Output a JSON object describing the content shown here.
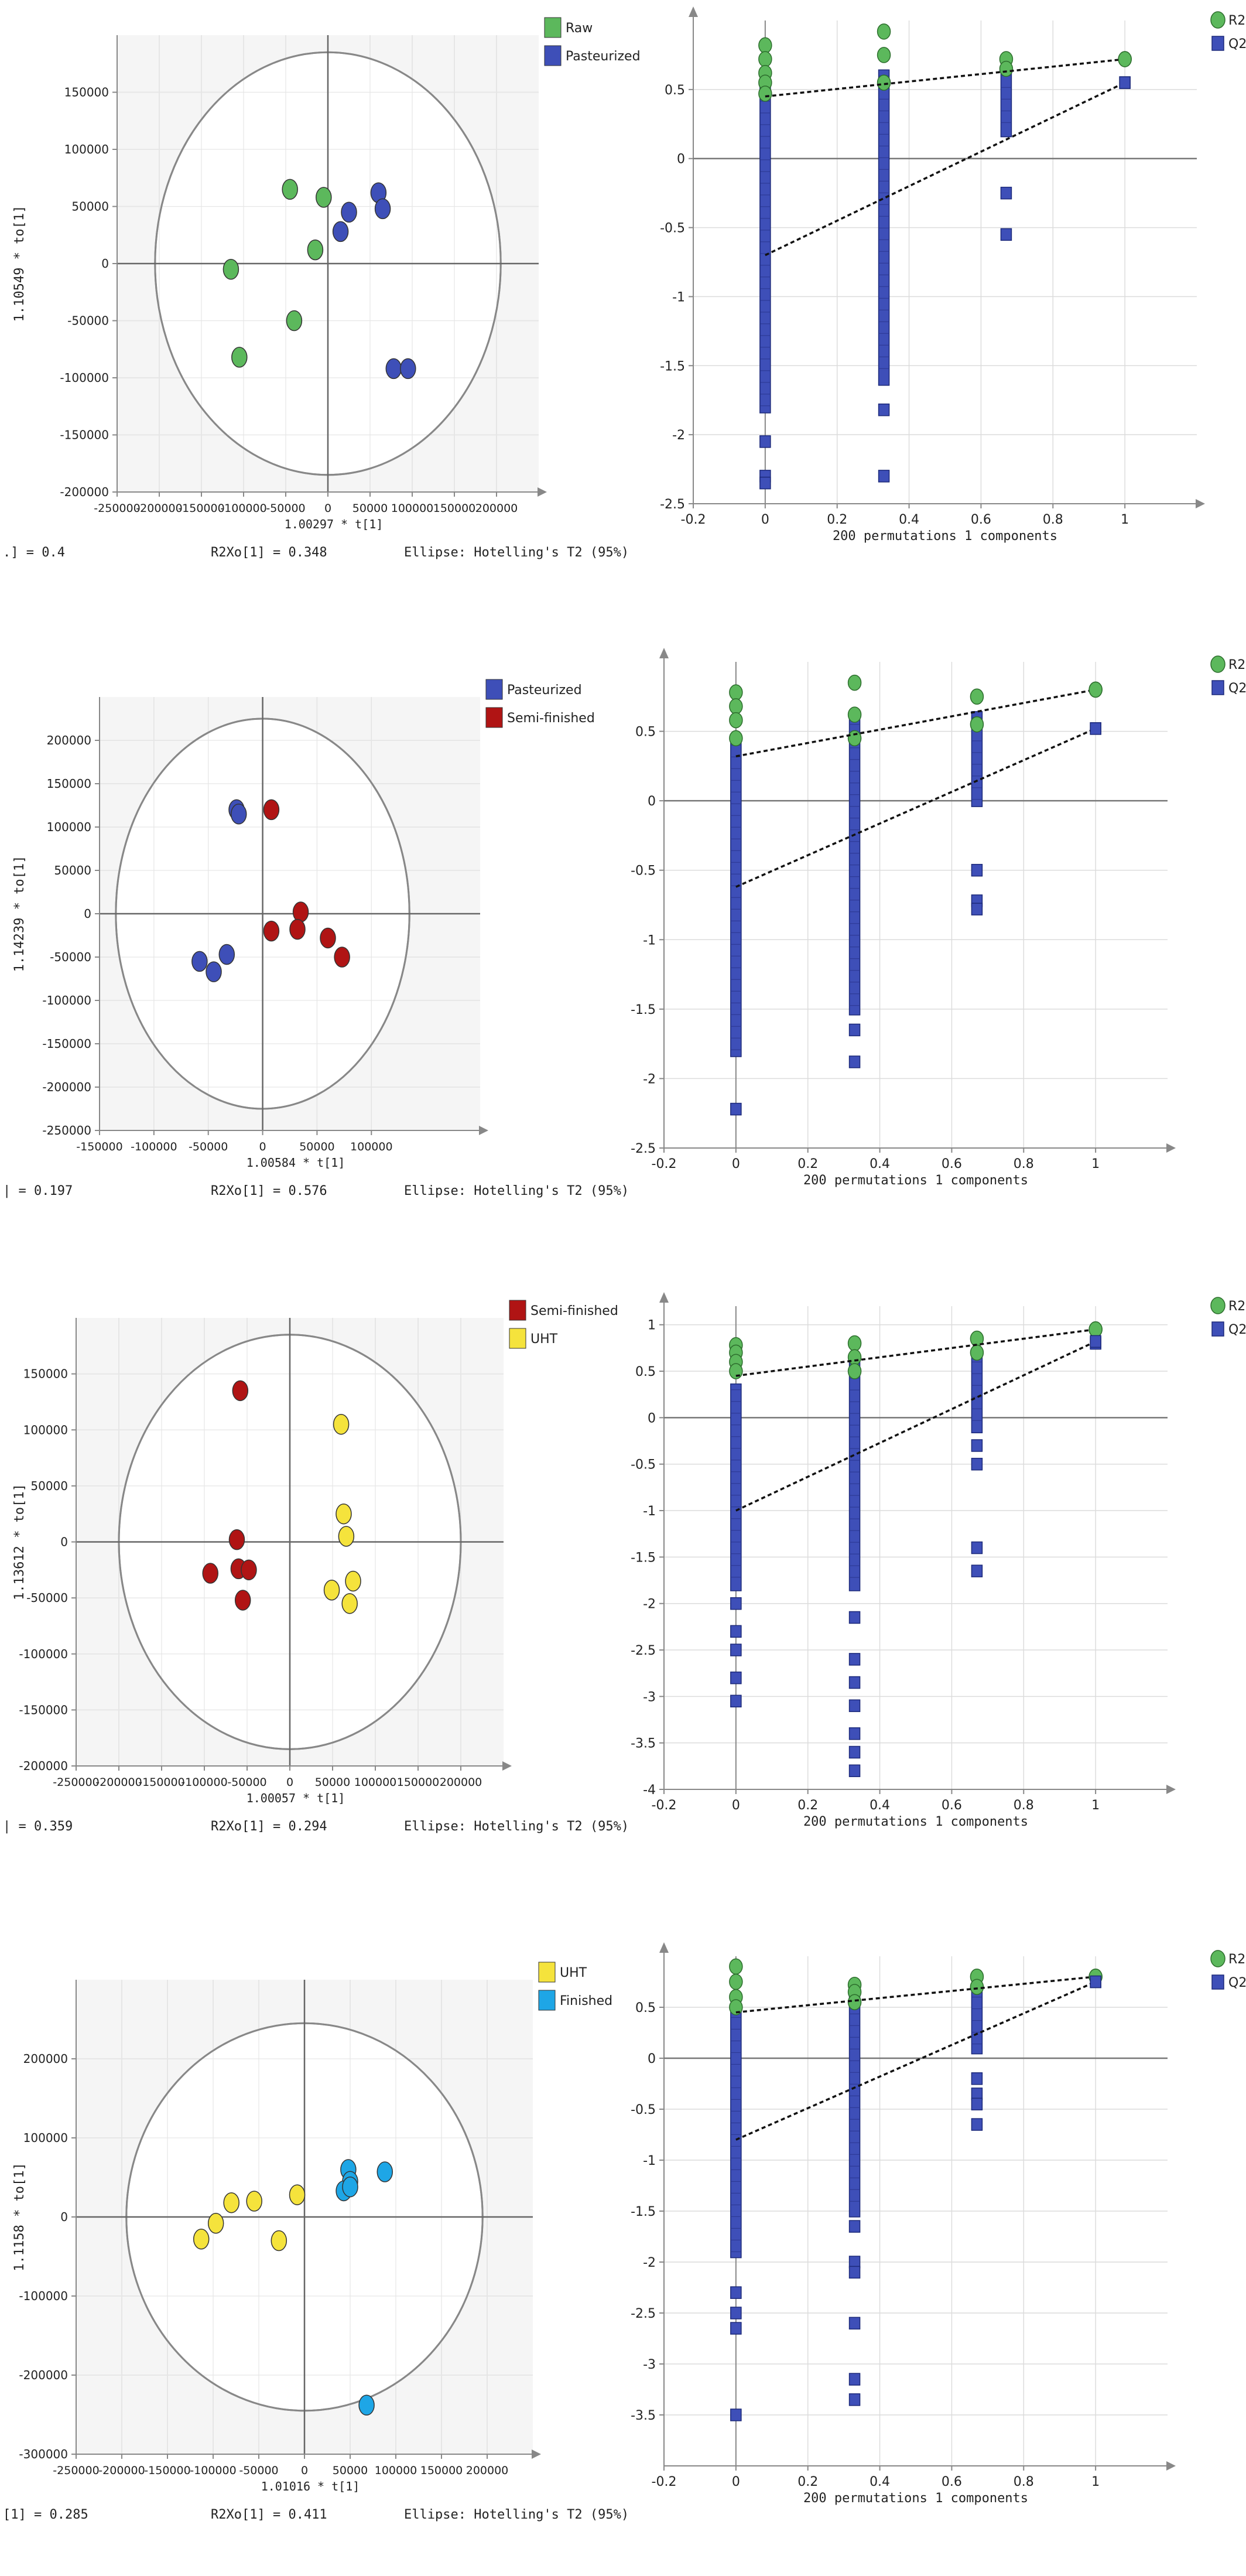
{
  "colors": {
    "raw": "#5cb85c",
    "pasteurized": "#3e4fb8",
    "semi_finished": "#b01414",
    "uht": "#f5e33c",
    "finished": "#1ea6e6",
    "r2": "#5cb85c",
    "q2": "#3e4fb8",
    "plot_bg": "#f5f5f5",
    "grid": "#dcdcdc"
  },
  "chart_data": [
    {
      "type": "scatter",
      "subtype": "opls-da-scores",
      "xlabel": "1.00297 * t[1]",
      "ylabel": "1.10549 * to[1]",
      "xlim": [
        -250000,
        250000
      ],
      "ylim": [
        -200000,
        200000
      ],
      "xticks": [
        -250000,
        -200000,
        -150000,
        -100000,
        -50000,
        0,
        50000,
        100000,
        150000,
        200000
      ],
      "yticks": [
        -200000,
        -150000,
        -100000,
        -50000,
        0,
        50000,
        100000,
        150000
      ],
      "ellipse": {
        "rx": 205000,
        "ry": 185000
      },
      "legend": [
        {
          "label": "Raw",
          "color_key": "raw"
        },
        {
          "label": "Pasteurized",
          "color_key": "pasteurized"
        }
      ],
      "footer": [
        ".] = 0.4",
        "R2Xo[1] = 0.348",
        "Ellipse: Hotelling's T2 (95%)"
      ],
      "series": [
        {
          "name": "Raw",
          "color_key": "raw",
          "points": [
            [
              -45000,
              65000
            ],
            [
              -5000,
              58000
            ],
            [
              -15000,
              12000
            ],
            [
              -115000,
              -5000
            ],
            [
              -40000,
              -50000
            ],
            [
              -105000,
              -82000
            ]
          ]
        },
        {
          "name": "Pasteurized",
          "color_key": "pasteurized",
          "points": [
            [
              60000,
              62000
            ],
            [
              25000,
              45000
            ],
            [
              15000,
              28000
            ],
            [
              65000,
              48000
            ],
            [
              78000,
              -92000
            ],
            [
              95000,
              -92000
            ]
          ]
        }
      ]
    },
    {
      "type": "scatter",
      "subtype": "permutation-test",
      "xlabel": "200 permutations 1 components",
      "xlim": [
        -0.2,
        1.2
      ],
      "ylim": [
        -2.5,
        1
      ],
      "xticks": [
        -0.2,
        0,
        0.2,
        0.4,
        0.6,
        0.8,
        1
      ],
      "yticks": [
        -2.5,
        -2,
        -1.5,
        -1,
        -0.5,
        0,
        0.5
      ],
      "legend": [
        {
          "label": "R2",
          "color_key": "r2"
        },
        {
          "label": "Q2",
          "color_key": "q2"
        }
      ],
      "r2_line": {
        "intercept": 0.45,
        "end": [
          1,
          0.72
        ]
      },
      "q2_line": {
        "intercept": -0.7,
        "end": [
          1,
          0.55
        ]
      },
      "r2_points": {
        "x": [
          0,
          0,
          0,
          0,
          0,
          0.33,
          0.33,
          0.33,
          0.67,
          0.67,
          1
        ],
        "y": [
          0.82,
          0.72,
          0.62,
          0.55,
          0.47,
          0.92,
          0.75,
          0.55,
          0.72,
          0.65,
          0.72
        ]
      },
      "q2_cols": [
        {
          "x": 0,
          "min": -1.8,
          "max": 0.5,
          "extra": [
            -2.05,
            -2.3,
            -2.35
          ]
        },
        {
          "x": 0.33,
          "min": -1.6,
          "max": 0.6,
          "extra": [
            -1.82,
            -2.3
          ]
        },
        {
          "x": 0.67,
          "min": 0.2,
          "max": 0.6,
          "extra": [
            -0.25,
            -0.55
          ]
        },
        {
          "x": 1,
          "min": 0.55,
          "max": 0.55,
          "extra": []
        }
      ]
    },
    {
      "type": "scatter",
      "subtype": "opls-da-scores",
      "xlabel": "1.00584 * t[1]",
      "ylabel": "1.14239 * to[1]",
      "xlim": [
        -150000,
        200000
      ],
      "ylim": [
        -250000,
        250000
      ],
      "xticks": [
        -150000,
        -100000,
        -50000,
        0,
        50000,
        100000
      ],
      "yticks": [
        -250000,
        -200000,
        -150000,
        -100000,
        -50000,
        0,
        50000,
        100000,
        150000,
        200000
      ],
      "ellipse": {
        "rx": 135000,
        "ry": 225000
      },
      "legend": [
        {
          "label": "Pasteurized",
          "color_key": "pasteurized"
        },
        {
          "label": "Semi-finished",
          "color_key": "semi_finished"
        }
      ],
      "footer": [
        "| = 0.197",
        "R2Xo[1] = 0.576",
        "Ellipse: Hotelling's T2 (95%)"
      ],
      "series": [
        {
          "name": "Pasteurized",
          "color_key": "pasteurized",
          "points": [
            [
              -24000,
              120000
            ],
            [
              -22000,
              115000
            ],
            [
              -58000,
              -55000
            ],
            [
              -45000,
              -67000
            ],
            [
              -33000,
              -47000
            ]
          ]
        },
        {
          "name": "Semi-finished",
          "color_key": "semi_finished",
          "points": [
            [
              8000,
              120000
            ],
            [
              8000,
              -20000
            ],
            [
              35000,
              2000
            ],
            [
              32000,
              -18000
            ],
            [
              60000,
              -28000
            ],
            [
              73000,
              -50000
            ]
          ]
        }
      ]
    },
    {
      "type": "scatter",
      "subtype": "permutation-test",
      "xlabel": "200 permutations 1 components",
      "xlim": [
        -0.2,
        1.2
      ],
      "ylim": [
        -2.5,
        1
      ],
      "xticks": [
        -0.2,
        0,
        0.2,
        0.4,
        0.6,
        0.8,
        1
      ],
      "yticks": [
        -2.5,
        -2,
        -1.5,
        -1,
        -0.5,
        0,
        0.5
      ],
      "legend": [
        {
          "label": "R2",
          "color_key": "r2"
        },
        {
          "label": "Q2",
          "color_key": "q2"
        }
      ],
      "r2_line": {
        "intercept": 0.32,
        "end": [
          1,
          0.8
        ]
      },
      "q2_line": {
        "intercept": -0.62,
        "end": [
          1,
          0.52
        ]
      },
      "r2_points": {
        "x": [
          0,
          0,
          0,
          0,
          0.33,
          0.33,
          0.33,
          0.67,
          0.67,
          1
        ],
        "y": [
          0.78,
          0.68,
          0.58,
          0.45,
          0.85,
          0.62,
          0.45,
          0.75,
          0.55,
          0.8
        ]
      },
      "q2_cols": [
        {
          "x": 0,
          "min": -1.8,
          "max": 0.4,
          "extra": [
            -2.22
          ]
        },
        {
          "x": 0.33,
          "min": -1.5,
          "max": 0.55,
          "extra": [
            -1.65,
            -1.88
          ]
        },
        {
          "x": 0.67,
          "min": 0.0,
          "max": 0.6,
          "extra": [
            -0.5,
            -0.72,
            -0.78
          ]
        },
        {
          "x": 1,
          "min": 0.52,
          "max": 0.52,
          "extra": []
        }
      ]
    },
    {
      "type": "scatter",
      "subtype": "opls-da-scores",
      "xlabel": "1.00057 * t[1]",
      "ylabel": "1.13612 * to[1]",
      "xlim": [
        -250000,
        250000
      ],
      "ylim": [
        -200000,
        200000
      ],
      "xticks": [
        -250000,
        -200000,
        -150000,
        -100000,
        -50000,
        0,
        50000,
        100000,
        150000,
        200000
      ],
      "yticks": [
        -200000,
        -150000,
        -100000,
        -50000,
        0,
        50000,
        100000,
        150000
      ],
      "ellipse": {
        "rx": 200000,
        "ry": 185000
      },
      "legend": [
        {
          "label": "Semi-finished",
          "color_key": "semi_finished"
        },
        {
          "label": "UHT",
          "color_key": "uht"
        }
      ],
      "footer": [
        "| = 0.359",
        "R2Xo[1] = 0.294",
        "Ellipse: Hotelling's T2 (95%)"
      ],
      "series": [
        {
          "name": "Semi-finished",
          "color_key": "semi_finished",
          "points": [
            [
              -58000,
              135000
            ],
            [
              -62000,
              2000
            ],
            [
              -60000,
              -24000
            ],
            [
              -48000,
              -25000
            ],
            [
              -93000,
              -28000
            ],
            [
              -55000,
              -52000
            ]
          ]
        },
        {
          "name": "UHT",
          "color_key": "uht",
          "points": [
            [
              60000,
              105000
            ],
            [
              63000,
              25000
            ],
            [
              66000,
              5000
            ],
            [
              74000,
              -35000
            ],
            [
              49000,
              -43000
            ],
            [
              70000,
              -55000
            ]
          ]
        }
      ]
    },
    {
      "type": "scatter",
      "subtype": "permutation-test",
      "xlabel": "200 permutations 1 components",
      "xlim": [
        -0.2,
        1.2
      ],
      "ylim": [
        -4,
        1.2
      ],
      "xticks": [
        -0.2,
        0,
        0.2,
        0.4,
        0.6,
        0.8,
        1
      ],
      "yticks": [
        -4,
        -3.5,
        -3,
        -2.5,
        -2,
        -1.5,
        -1,
        -0.5,
        0,
        0.5,
        1
      ],
      "legend": [
        {
          "label": "R2",
          "color_key": "r2"
        },
        {
          "label": "Q2",
          "color_key": "q2"
        }
      ],
      "r2_line": {
        "intercept": 0.45,
        "end": [
          1,
          0.95
        ]
      },
      "q2_line": {
        "intercept": -1.0,
        "end": [
          1,
          0.82
        ]
      },
      "r2_points": {
        "x": [
          0,
          0,
          0,
          0,
          0.33,
          0.33,
          0.33,
          0.67,
          0.67,
          1
        ],
        "y": [
          0.78,
          0.7,
          0.6,
          0.5,
          0.8,
          0.65,
          0.5,
          0.85,
          0.7,
          0.95
        ]
      },
      "q2_cols": [
        {
          "x": 0,
          "min": -1.8,
          "max": 0.3,
          "extra": [
            -2.0,
            -2.3,
            -2.5,
            -2.8,
            -3.05
          ]
        },
        {
          "x": 0.33,
          "min": -1.8,
          "max": 0.55,
          "extra": [
            -2.15,
            -2.6,
            -2.85,
            -3.1,
            -3.4,
            -3.6,
            -3.8
          ]
        },
        {
          "x": 0.67,
          "min": -0.1,
          "max": 0.6,
          "extra": [
            -0.3,
            -0.5,
            -1.4,
            -1.65
          ]
        },
        {
          "x": 1,
          "min": 0.8,
          "max": 0.8,
          "extra": []
        }
      ]
    },
    {
      "type": "scatter",
      "subtype": "opls-da-scores",
      "xlabel": "1.01016 * t[1]",
      "ylabel": "1.1158 * to[1]",
      "xlim": [
        -250000,
        250000
      ],
      "ylim": [
        -300000,
        300000
      ],
      "xticks": [
        -250000,
        -200000,
        -150000,
        -100000,
        -50000,
        0,
        50000,
        100000,
        150000,
        200000
      ],
      "yticks": [
        -300000,
        -200000,
        -100000,
        0,
        100000,
        200000
      ],
      "ellipse": {
        "rx": 195000,
        "ry": 245000
      },
      "legend": [
        {
          "label": "UHT",
          "color_key": "uht"
        },
        {
          "label": "Finished",
          "color_key": "finished"
        }
      ],
      "footer": [
        "[1] = 0.285",
        "R2Xo[1] = 0.411",
        "Ellipse: Hotelling's T2 (95%)"
      ],
      "series": [
        {
          "name": "UHT",
          "color_key": "uht",
          "points": [
            [
              -55000,
              20000
            ],
            [
              -80000,
              18000
            ],
            [
              -97000,
              -8000
            ],
            [
              -113000,
              -28000
            ],
            [
              -28000,
              -30000
            ],
            [
              -8000,
              28000
            ]
          ]
        },
        {
          "name": "Finished",
          "color_key": "finished",
          "points": [
            [
              48000,
              60000
            ],
            [
              50000,
              45000
            ],
            [
              88000,
              57000
            ],
            [
              43000,
              33000
            ],
            [
              50000,
              38000
            ],
            [
              68000,
              -238000
            ]
          ]
        }
      ]
    },
    {
      "type": "scatter",
      "subtype": "permutation-test",
      "xlabel": "200 permutations 1 components",
      "xlim": [
        -0.2,
        1.2
      ],
      "ylim": [
        -4,
        1
      ],
      "xticks": [
        -0.2,
        0,
        0.2,
        0.4,
        0.6,
        0.8,
        1
      ],
      "yticks": [
        -3.5,
        -3,
        -2.5,
        -2,
        -1.5,
        -1,
        -0.5,
        0,
        0.5
      ],
      "legend": [
        {
          "label": "R2",
          "color_key": "r2"
        },
        {
          "label": "Q2",
          "color_key": "q2"
        }
      ],
      "r2_line": {
        "intercept": 0.45,
        "end": [
          1,
          0.8
        ]
      },
      "q2_line": {
        "intercept": -0.8,
        "end": [
          1,
          0.75
        ]
      },
      "r2_points": {
        "x": [
          0,
          0,
          0,
          0,
          0.33,
          0.33,
          0.33,
          0.67,
          0.67,
          1
        ],
        "y": [
          0.9,
          0.75,
          0.6,
          0.5,
          0.72,
          0.65,
          0.55,
          0.8,
          0.7,
          0.8
        ]
      },
      "q2_cols": [
        {
          "x": 0,
          "min": -1.9,
          "max": 0.4,
          "extra": [
            -2.3,
            -2.5,
            -2.65,
            -3.5
          ]
        },
        {
          "x": 0.33,
          "min": -1.5,
          "max": 0.55,
          "extra": [
            -1.65,
            -2.0,
            -2.1,
            -2.6,
            -3.15,
            -3.35
          ]
        },
        {
          "x": 0.67,
          "min": 0.1,
          "max": 0.6,
          "extra": [
            -0.2,
            -0.35,
            -0.45,
            -0.65
          ]
        },
        {
          "x": 1,
          "min": 0.75,
          "max": 0.75,
          "extra": []
        }
      ]
    }
  ]
}
